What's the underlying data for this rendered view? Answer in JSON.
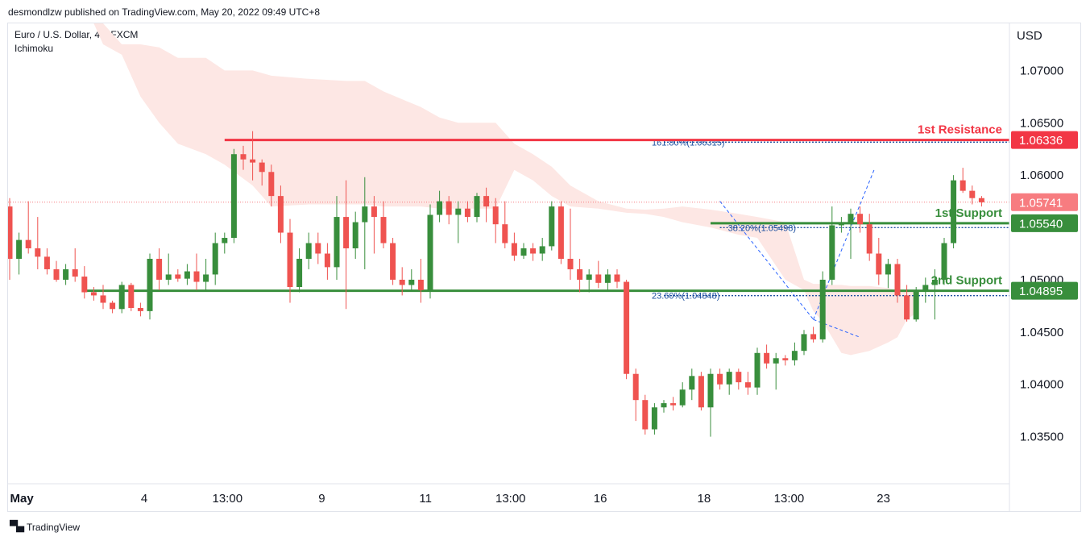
{
  "header": {
    "publish_line": "desmondlzw published on TradingView.com, May 20, 2022 09:49 UTC+8"
  },
  "legend": {
    "symbol_line": "Euro / U.S. Dollar, 4h, FXCM",
    "indicator": "Ichimoku"
  },
  "footer": {
    "brand": "TradingView",
    "logo_icon": "tradingview-logo-icon"
  },
  "colors": {
    "up": "#388e3c",
    "down": "#ef5350",
    "cloud": "#fde7e4",
    "resistance": "#f23645",
    "support": "#388e3c",
    "fib": "#1e50a0",
    "last_price": "#f77c80"
  },
  "chart_data": {
    "type": "candlestick",
    "currency": "USD",
    "ylim": [
      1.0305,
      1.0745
    ],
    "y_ticks": [
      "1.07000",
      "1.06500",
      "1.06000",
      "1.05500",
      "1.05000",
      "1.04500",
      "1.04000",
      "1.03500"
    ],
    "x_labels": [
      {
        "label": "May",
        "i": 1.3,
        "bold": true
      },
      {
        "label": "4",
        "i": 14.4
      },
      {
        "label": "13:00",
        "i": 23.3
      },
      {
        "label": "9",
        "i": 33.4
      },
      {
        "label": "11",
        "i": 44.5
      },
      {
        "label": "13:00",
        "i": 53.6
      },
      {
        "label": "16",
        "i": 63.2
      },
      {
        "label": "18",
        "i": 74.3
      },
      {
        "label": "13:00",
        "i": 83.4
      },
      {
        "label": "23",
        "i": 93.5
      }
    ],
    "candles": [
      [
        1.057,
        1.0578,
        1.05,
        1.052
      ],
      [
        1.052,
        1.0545,
        1.0505,
        1.0538
      ],
      [
        1.0538,
        1.0575,
        1.0525,
        1.053
      ],
      [
        1.053,
        1.056,
        1.051,
        1.0522
      ],
      [
        1.0522,
        1.053,
        1.0505,
        1.051
      ],
      [
        1.051,
        1.0518,
        1.0498,
        1.05
      ],
      [
        1.05,
        1.0515,
        1.0495,
        1.051
      ],
      [
        1.051,
        1.053,
        1.0498,
        1.0503
      ],
      [
        1.0503,
        1.0513,
        1.0482,
        1.0488
      ],
      [
        1.0488,
        1.0493,
        1.048,
        1.0485
      ],
      [
        1.0485,
        1.0495,
        1.0472,
        1.0478
      ],
      [
        1.0478,
        1.048,
        1.0468,
        1.0472
      ],
      [
        1.0472,
        1.0498,
        1.0468,
        1.0495
      ],
      [
        1.0495,
        1.0497,
        1.047,
        1.0473
      ],
      [
        1.0473,
        1.0478,
        1.0465,
        1.047
      ],
      [
        1.047,
        1.0525,
        1.0462,
        1.052
      ],
      [
        1.052,
        1.053,
        1.049,
        1.05
      ],
      [
        1.05,
        1.0525,
        1.0495,
        1.0505
      ],
      [
        1.0505,
        1.051,
        1.0498,
        1.0501
      ],
      [
        1.0501,
        1.0515,
        1.0495,
        1.0508
      ],
      [
        1.0508,
        1.0525,
        1.049,
        1.0498
      ],
      [
        1.0498,
        1.052,
        1.049,
        1.0505
      ],
      [
        1.0505,
        1.0545,
        1.0495,
        1.0535
      ],
      [
        1.0535,
        1.0545,
        1.0525,
        1.054
      ],
      [
        1.054,
        1.0625,
        1.0535,
        1.062
      ],
      [
        1.062,
        1.0628,
        1.0605,
        1.0615
      ],
      [
        1.0615,
        1.0642,
        1.0595,
        1.0612
      ],
      [
        1.0612,
        1.0615,
        1.059,
        1.0603
      ],
      [
        1.0603,
        1.061,
        1.057,
        1.058
      ],
      [
        1.058,
        1.059,
        1.0535,
        1.0545
      ],
      [
        1.0545,
        1.0558,
        1.0478,
        1.0493
      ],
      [
        1.0493,
        1.053,
        1.0488,
        1.052
      ],
      [
        1.052,
        1.0545,
        1.051,
        1.0535
      ],
      [
        1.0535,
        1.0545,
        1.0515,
        1.0525
      ],
      [
        1.0525,
        1.0535,
        1.05,
        1.0512
      ],
      [
        1.0512,
        1.058,
        1.05,
        1.056
      ],
      [
        1.056,
        1.0595,
        1.0472,
        1.053
      ],
      [
        1.053,
        1.0565,
        1.052,
        1.0555
      ],
      [
        1.0555,
        1.0598,
        1.051,
        1.057
      ],
      [
        1.057,
        1.058,
        1.0525,
        1.056
      ],
      [
        1.056,
        1.0575,
        1.053,
        1.0535
      ],
      [
        1.0535,
        1.054,
        1.0495,
        1.05
      ],
      [
        1.05,
        1.0512,
        1.0485,
        1.0495
      ],
      [
        1.0495,
        1.051,
        1.049,
        1.05
      ],
      [
        1.05,
        1.052,
        1.0478,
        1.049
      ],
      [
        1.049,
        1.0572,
        1.0482,
        1.0562
      ],
      [
        1.0562,
        1.0585,
        1.0555,
        1.0575
      ],
      [
        1.0575,
        1.058,
        1.0553,
        1.0562
      ],
      [
        1.0562,
        1.0575,
        1.0535,
        1.0568
      ],
      [
        1.0568,
        1.0575,
        1.0555,
        1.056
      ],
      [
        1.056,
        1.0583,
        1.0555,
        1.058
      ],
      [
        1.058,
        1.0588,
        1.0555,
        1.057
      ],
      [
        1.057,
        1.0578,
        1.0535,
        1.0553
      ],
      [
        1.0553,
        1.0575,
        1.053,
        1.0535
      ],
      [
        1.0535,
        1.0545,
        1.0518,
        1.0523
      ],
      [
        1.0523,
        1.0535,
        1.052,
        1.053
      ],
      [
        1.053,
        1.0535,
        1.0518,
        1.0525
      ],
      [
        1.0525,
        1.054,
        1.0518,
        1.0532
      ],
      [
        1.0532,
        1.0575,
        1.0528,
        1.057
      ],
      [
        1.057,
        1.0575,
        1.0515,
        1.052
      ],
      [
        1.052,
        1.0568,
        1.05,
        1.051
      ],
      [
        1.051,
        1.052,
        1.0488,
        1.05
      ],
      [
        1.05,
        1.051,
        1.0488,
        1.0505
      ],
      [
        1.0505,
        1.0518,
        1.0492,
        1.0497
      ],
      [
        1.0497,
        1.051,
        1.049,
        1.0505
      ],
      [
        1.0505,
        1.051,
        1.0492,
        1.0498
      ],
      [
        1.0498,
        1.05,
        1.0405,
        1.041
      ],
      [
        1.041,
        1.0415,
        1.0365,
        1.0385
      ],
      [
        1.0385,
        1.039,
        1.0352,
        1.0357
      ],
      [
        1.0357,
        1.0382,
        1.0352,
        1.0378
      ],
      [
        1.0378,
        1.0385,
        1.0373,
        1.0382
      ],
      [
        1.0382,
        1.0388,
        1.0375,
        1.038
      ],
      [
        1.038,
        1.0402,
        1.0378,
        1.0395
      ],
      [
        1.0395,
        1.0415,
        1.0385,
        1.0408
      ],
      [
        1.0408,
        1.0412,
        1.0375,
        1.0378
      ],
      [
        1.0378,
        1.0415,
        1.035,
        1.041
      ],
      [
        1.041,
        1.0415,
        1.0395,
        1.04
      ],
      [
        1.04,
        1.0415,
        1.039,
        1.0412
      ],
      [
        1.0412,
        1.0415,
        1.0395,
        1.0402
      ],
      [
        1.0402,
        1.0412,
        1.039,
        1.0397
      ],
      [
        1.0397,
        1.0435,
        1.039,
        1.043
      ],
      [
        1.043,
        1.0438,
        1.0415,
        1.042
      ],
      [
        1.042,
        1.043,
        1.0395,
        1.0425
      ],
      [
        1.0425,
        1.0428,
        1.0418,
        1.0423
      ],
      [
        1.0423,
        1.044,
        1.0418,
        1.0432
      ],
      [
        1.0432,
        1.0452,
        1.0428,
        1.0448
      ],
      [
        1.0448,
        1.0455,
        1.044,
        1.0443
      ],
      [
        1.0443,
        1.0508,
        1.044,
        1.05
      ],
      [
        1.05,
        1.057,
        1.0495,
        1.0552
      ],
      [
        1.0552,
        1.056,
        1.0545,
        1.0554
      ],
      [
        1.0554,
        1.0568,
        1.052,
        1.0563
      ],
      [
        1.0563,
        1.057,
        1.0545,
        1.0553
      ],
      [
        1.0553,
        1.0563,
        1.0518,
        1.0525
      ],
      [
        1.0525,
        1.054,
        1.0495,
        1.0505
      ],
      [
        1.0505,
        1.052,
        1.0492,
        1.0515
      ],
      [
        1.0515,
        1.052,
        1.0478,
        1.0485
      ],
      [
        1.0485,
        1.0495,
        1.046,
        1.0462
      ],
      [
        1.0462,
        1.0493,
        1.046,
        1.049
      ],
      [
        1.049,
        1.0502,
        1.0478,
        1.0495
      ],
      [
        1.0495,
        1.051,
        1.0462,
        1.05
      ],
      [
        1.05,
        1.054,
        1.0495,
        1.0535
      ],
      [
        1.0535,
        1.06,
        1.053,
        1.0595
      ],
      [
        1.0595,
        1.0607,
        1.0583,
        1.0585
      ],
      [
        1.0585,
        1.059,
        1.0572,
        1.0578
      ],
      [
        1.0578,
        1.058,
        1.057,
        1.0574
      ]
    ],
    "cloud": [
      [
        0,
        1.0745,
        1.0745
      ],
      [
        9,
        1.0745,
        1.0745
      ],
      [
        10,
        1.0745,
        1.0725
      ],
      [
        12,
        1.0725,
        1.0715
      ],
      [
        14,
        1.0725,
        1.0675
      ],
      [
        16,
        1.0722,
        1.065
      ],
      [
        18,
        1.0712,
        1.063
      ],
      [
        21,
        1.0712,
        1.062
      ],
      [
        23,
        1.07,
        1.061
      ],
      [
        26,
        1.07,
        1.059
      ],
      [
        28,
        1.0695,
        1.057
      ],
      [
        32,
        1.0692,
        1.0572
      ],
      [
        36,
        1.069,
        1.0572
      ],
      [
        38,
        1.069,
        1.0572
      ],
      [
        40,
        1.068,
        1.057
      ],
      [
        44,
        1.0665,
        1.057
      ],
      [
        46,
        1.0655,
        1.0568
      ],
      [
        48,
        1.065,
        1.0568
      ],
      [
        50,
        1.065,
        1.0568
      ],
      [
        52,
        1.065,
        1.0568
      ],
      [
        54,
        1.063,
        1.0605
      ],
      [
        56,
        1.062,
        1.0595
      ],
      [
        58,
        1.0608,
        1.058
      ],
      [
        60,
        1.059,
        1.057
      ],
      [
        63,
        1.0575,
        1.0568
      ],
      [
        66,
        1.0568,
        1.0564
      ],
      [
        68,
        1.0567,
        1.0563
      ],
      [
        70,
        1.0568,
        1.056
      ],
      [
        72,
        1.057,
        1.0555
      ],
      [
        75,
        1.0567,
        1.055
      ],
      [
        78,
        1.0563,
        1.0543
      ],
      [
        80,
        1.056,
        1.054
      ],
      [
        83,
        1.0555,
        1.05
      ],
      [
        85,
        1.05,
        1.049
      ],
      [
        86,
        1.0496,
        1.047
      ],
      [
        87,
        1.0496,
        1.046
      ],
      [
        88,
        1.0495,
        1.0445
      ],
      [
        89,
        1.0495,
        1.043
      ],
      [
        90,
        1.0494,
        1.0428
      ],
      [
        92,
        1.0494,
        1.0432
      ],
      [
        94,
        1.0492,
        1.044
      ],
      [
        95,
        1.049,
        1.0445
      ],
      [
        96,
        1.049,
        1.0462
      ],
      [
        97,
        1.0488,
        1.0468
      ]
    ],
    "levels": [
      {
        "name": "1st Resistance",
        "value": 1.06336,
        "price_label": "1.06336",
        "color": "#f23645",
        "from": 23
      },
      {
        "name": "1st Support",
        "value": 1.0554,
        "price_label": "1.05540",
        "color": "#388e3c",
        "from": 75
      },
      {
        "name": "2nd Support",
        "value": 1.04895,
        "price_label": "1.04895",
        "color": "#388e3c",
        "from": 8
      }
    ],
    "last_price": {
      "value": 1.05741,
      "label": "1.05741"
    },
    "fib_levels": [
      {
        "label": "161.80%(1.06315)",
        "value": 1.06315,
        "from": 70
      },
      {
        "label": "38.20%(1.05498)",
        "value": 1.05498,
        "from": 76
      },
      {
        "label": "23.60%(1.04848)",
        "value": 1.04848,
        "from": 70
      }
    ],
    "trend_lines": [
      [
        [
          76,
          1.0575
        ],
        [
          86,
          1.0462
        ]
      ],
      [
        [
          86,
          1.0462
        ],
        [
          91,
          1.0445
        ]
      ],
      [
        [
          86,
          1.0462
        ],
        [
          92.5,
          1.0605
        ]
      ]
    ]
  }
}
